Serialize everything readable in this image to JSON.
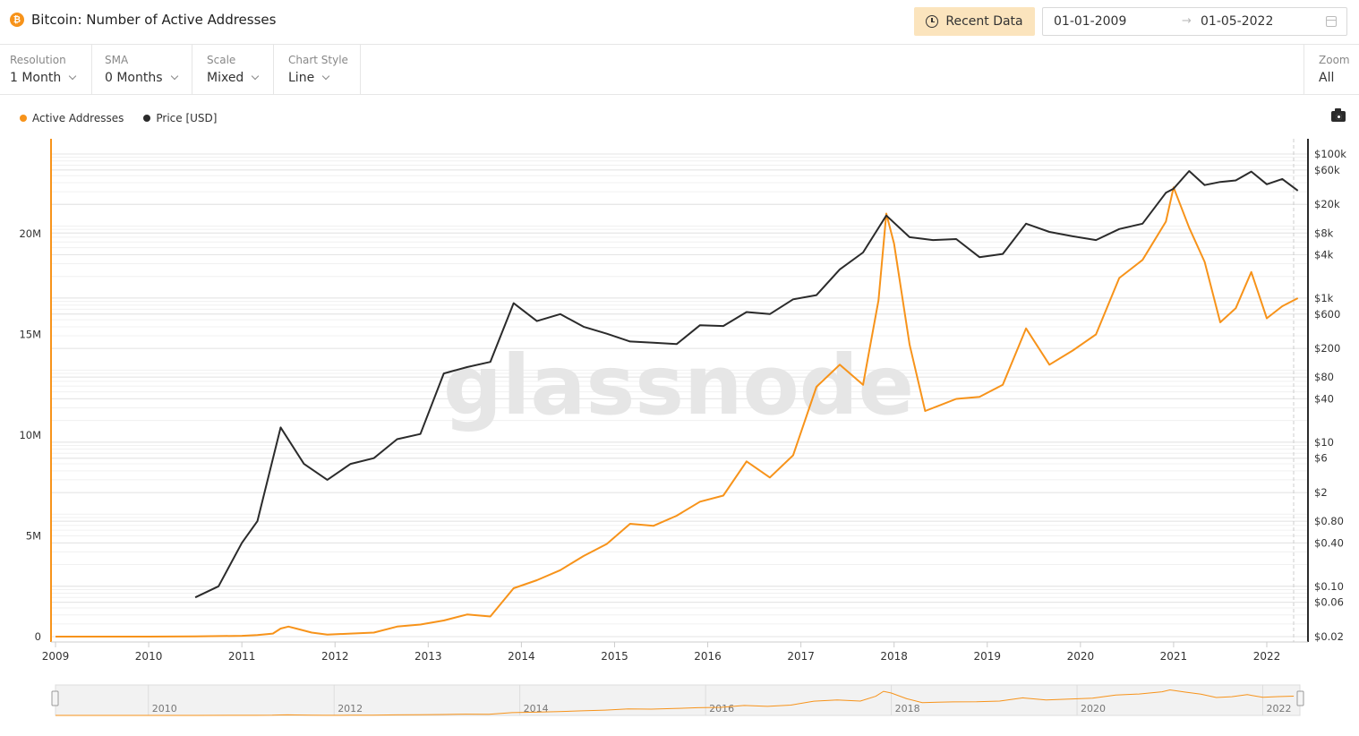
{
  "header": {
    "title": "Bitcoin: Number of Active Addresses",
    "coin_icon": "bitcoin-icon",
    "recent_button": "Recent Data",
    "date_from": "01-01-2009",
    "date_arrow": "→",
    "date_to": "01-05-2022"
  },
  "controls": {
    "resolution": {
      "label": "Resolution",
      "value": "1 Month"
    },
    "sma": {
      "label": "SMA",
      "value": "0 Months"
    },
    "scale": {
      "label": "Scale",
      "value": "Mixed"
    },
    "chart_style": {
      "label": "Chart Style",
      "value": "Line"
    },
    "zoom": {
      "label": "Zoom",
      "value": "All"
    }
  },
  "legend": [
    {
      "label": "Active Addresses",
      "color": "#f7931a"
    },
    {
      "label": "Price [USD]",
      "color": "#2b2b2b"
    }
  ],
  "watermark": "glassnode",
  "chart_data": {
    "type": "line",
    "x_ticks": [
      "2009",
      "2010",
      "2011",
      "2012",
      "2013",
      "2014",
      "2015",
      "2016",
      "2017",
      "2018",
      "2019",
      "2020",
      "2021",
      "2022"
    ],
    "left_axis": {
      "ticks": [
        "0",
        "5M",
        "10M",
        "15M",
        "20M"
      ],
      "range": [
        0,
        25000000
      ],
      "scale": "linear"
    },
    "right_axis": {
      "ticks": [
        "$0.02",
        "$0.06",
        "$0.10",
        "$0.40",
        "$0.80",
        "$2",
        "$6",
        "$10",
        "$40",
        "$80",
        "$200",
        "$600",
        "$1k",
        "$4k",
        "$8k",
        "$20k",
        "$60k",
        "$100k"
      ],
      "scale": "log"
    },
    "grid": true,
    "series": [
      {
        "name": "Active Addresses",
        "color": "#f7931a",
        "axis": "left",
        "points": [
          [
            "2009-01",
            0
          ],
          [
            "2010-01",
            1000
          ],
          [
            "2010-07",
            10000
          ],
          [
            "2011-01",
            40000
          ],
          [
            "2011-03",
            80000
          ],
          [
            "2011-05",
            150000
          ],
          [
            "2011-06",
            400000
          ],
          [
            "2011-07",
            500000
          ],
          [
            "2011-08",
            400000
          ],
          [
            "2011-10",
            200000
          ],
          [
            "2011-12",
            100000
          ],
          [
            "2012-03",
            150000
          ],
          [
            "2012-06",
            200000
          ],
          [
            "2012-09",
            500000
          ],
          [
            "2012-12",
            600000
          ],
          [
            "2013-03",
            800000
          ],
          [
            "2013-06",
            1100000
          ],
          [
            "2013-09",
            1000000
          ],
          [
            "2013-12",
            2400000
          ],
          [
            "2014-03",
            2800000
          ],
          [
            "2014-06",
            3300000
          ],
          [
            "2014-09",
            4000000
          ],
          [
            "2014-12",
            4600000
          ],
          [
            "2015-03",
            5600000
          ],
          [
            "2015-06",
            5500000
          ],
          [
            "2015-09",
            6000000
          ],
          [
            "2015-12",
            6700000
          ],
          [
            "2016-03",
            7000000
          ],
          [
            "2016-06",
            8700000
          ],
          [
            "2016-09",
            7900000
          ],
          [
            "2016-12",
            9000000
          ],
          [
            "2017-03",
            12400000
          ],
          [
            "2017-06",
            13500000
          ],
          [
            "2017-09",
            12500000
          ],
          [
            "2017-11",
            16700000
          ],
          [
            "2017-12",
            21000000
          ],
          [
            "2018-01",
            19500000
          ],
          [
            "2018-03",
            14500000
          ],
          [
            "2018-05",
            11200000
          ],
          [
            "2018-07",
            11500000
          ],
          [
            "2018-09",
            11800000
          ],
          [
            "2018-12",
            11900000
          ],
          [
            "2019-03",
            12500000
          ],
          [
            "2019-06",
            15300000
          ],
          [
            "2019-09",
            13500000
          ],
          [
            "2019-12",
            14200000
          ],
          [
            "2020-03",
            15000000
          ],
          [
            "2020-06",
            17800000
          ],
          [
            "2020-09",
            18700000
          ],
          [
            "2020-12",
            20600000
          ],
          [
            "2021-01",
            22300000
          ],
          [
            "2021-03",
            20300000
          ],
          [
            "2021-05",
            18600000
          ],
          [
            "2021-07",
            15600000
          ],
          [
            "2021-09",
            16300000
          ],
          [
            "2021-11",
            18100000
          ],
          [
            "2022-01",
            15800000
          ],
          [
            "2022-03",
            16400000
          ],
          [
            "2022-05",
            16800000
          ]
        ]
      },
      {
        "name": "Price [USD]",
        "color": "#2b2b2b",
        "axis": "right",
        "points": [
          [
            "2010-07",
            0.07
          ],
          [
            "2010-10",
            0.1
          ],
          [
            "2011-01",
            0.4
          ],
          [
            "2011-03",
            0.8
          ],
          [
            "2011-06",
            16
          ],
          [
            "2011-09",
            5
          ],
          [
            "2011-12",
            3
          ],
          [
            "2012-03",
            5
          ],
          [
            "2012-06",
            6
          ],
          [
            "2012-09",
            11
          ],
          [
            "2012-12",
            13
          ],
          [
            "2013-03",
            90
          ],
          [
            "2013-06",
            110
          ],
          [
            "2013-09",
            130
          ],
          [
            "2013-12",
            850
          ],
          [
            "2014-03",
            480
          ],
          [
            "2014-06",
            600
          ],
          [
            "2014-09",
            400
          ],
          [
            "2014-12",
            320
          ],
          [
            "2015-03",
            250
          ],
          [
            "2015-06",
            240
          ],
          [
            "2015-09",
            230
          ],
          [
            "2015-12",
            420
          ],
          [
            "2016-03",
            410
          ],
          [
            "2016-06",
            640
          ],
          [
            "2016-09",
            600
          ],
          [
            "2016-12",
            960
          ],
          [
            "2017-03",
            1100
          ],
          [
            "2017-06",
            2500
          ],
          [
            "2017-09",
            4300
          ],
          [
            "2017-12",
            14000
          ],
          [
            "2018-03",
            7000
          ],
          [
            "2018-06",
            6400
          ],
          [
            "2018-09",
            6600
          ],
          [
            "2018-12",
            3700
          ],
          [
            "2019-03",
            4100
          ],
          [
            "2019-06",
            10800
          ],
          [
            "2019-09",
            8300
          ],
          [
            "2019-12",
            7200
          ],
          [
            "2020-03",
            6400
          ],
          [
            "2020-06",
            9100
          ],
          [
            "2020-09",
            10800
          ],
          [
            "2020-12",
            29000
          ],
          [
            "2021-01",
            33000
          ],
          [
            "2021-03",
            58000
          ],
          [
            "2021-05",
            37000
          ],
          [
            "2021-07",
            41000
          ],
          [
            "2021-09",
            43000
          ],
          [
            "2021-11",
            57000
          ],
          [
            "2022-01",
            38000
          ],
          [
            "2022-03",
            45000
          ],
          [
            "2022-05",
            31000
          ]
        ]
      }
    ]
  },
  "navigator": {
    "years": [
      "2010",
      "2012",
      "2014",
      "2016",
      "2018",
      "2020",
      "2022"
    ]
  }
}
